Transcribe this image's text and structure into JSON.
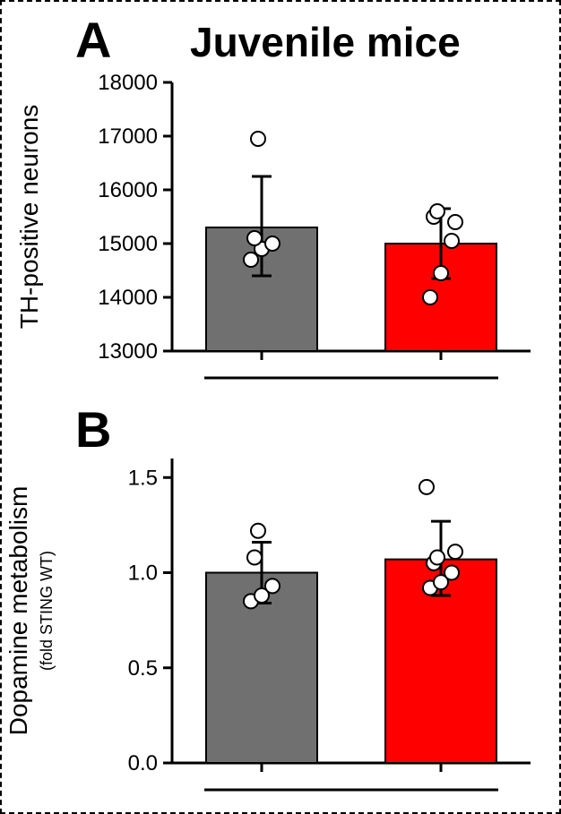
{
  "title": "Juvenile mice",
  "title_fontsize": 46,
  "title_fontweight": 900,
  "panels": {
    "A": {
      "label": "A",
      "label_fontsize": 56,
      "chart": {
        "type": "bar-with-scatter",
        "ylabel": "TH-positive neurons",
        "ylabel_fontsize": 28,
        "ylim": [
          13000,
          18000
        ],
        "yticks": [
          13000,
          14000,
          15000,
          16000,
          17000,
          18000
        ],
        "bars": [
          {
            "mean": 15300,
            "err_low": 14400,
            "err_high": 16250,
            "fill": "#707070",
            "stroke": "#000000",
            "points": [
              14700,
              14900,
              15000,
              15100,
              16950
            ]
          },
          {
            "mean": 15000,
            "err_low": 14350,
            "err_high": 15650,
            "fill": "#ff0000",
            "stroke": "#000000",
            "points": [
              14000,
              14450,
              15050,
              15500,
              15600,
              15400
            ]
          }
        ],
        "axis_color": "#000000",
        "axis_width": 3,
        "tick_fontsize": 24,
        "marker_radius": 8,
        "marker_fill": "#ffffff",
        "marker_stroke": "#000000",
        "marker_stroke_width": 2,
        "errorbar_width": 3,
        "cap_width": 22
      }
    },
    "B": {
      "label": "B",
      "label_fontsize": 56,
      "chart": {
        "type": "bar-with-scatter",
        "ylabel": "Dopamine metabolism",
        "ylabel_sub": "(fold STING WT)",
        "ylabel_fontsize": 28,
        "ylabel_sub_fontsize": 18,
        "ylim": [
          0.0,
          1.6
        ],
        "yticks": [
          0.0,
          0.5,
          1.0,
          1.5
        ],
        "ytick_labels": [
          "0.0",
          "0.5",
          "1.0",
          "1.5"
        ],
        "bars": [
          {
            "mean": 1.0,
            "err_low": 0.84,
            "err_high": 1.16,
            "fill": "#707070",
            "stroke": "#000000",
            "points": [
              0.85,
              0.88,
              0.93,
              1.08,
              1.22
            ]
          },
          {
            "mean": 1.07,
            "err_low": 0.88,
            "err_high": 1.27,
            "fill": "#ff0000",
            "stroke": "#000000",
            "points": [
              0.92,
              0.95,
              1.0,
              1.05,
              1.08,
              1.11,
              1.45
            ]
          }
        ],
        "axis_color": "#000000",
        "axis_width": 3,
        "tick_fontsize": 24,
        "marker_radius": 8,
        "marker_fill": "#ffffff",
        "marker_stroke": "#000000",
        "marker_stroke_width": 2,
        "errorbar_width": 3,
        "cap_width": 22
      }
    }
  },
  "background_color": "#ffffff"
}
